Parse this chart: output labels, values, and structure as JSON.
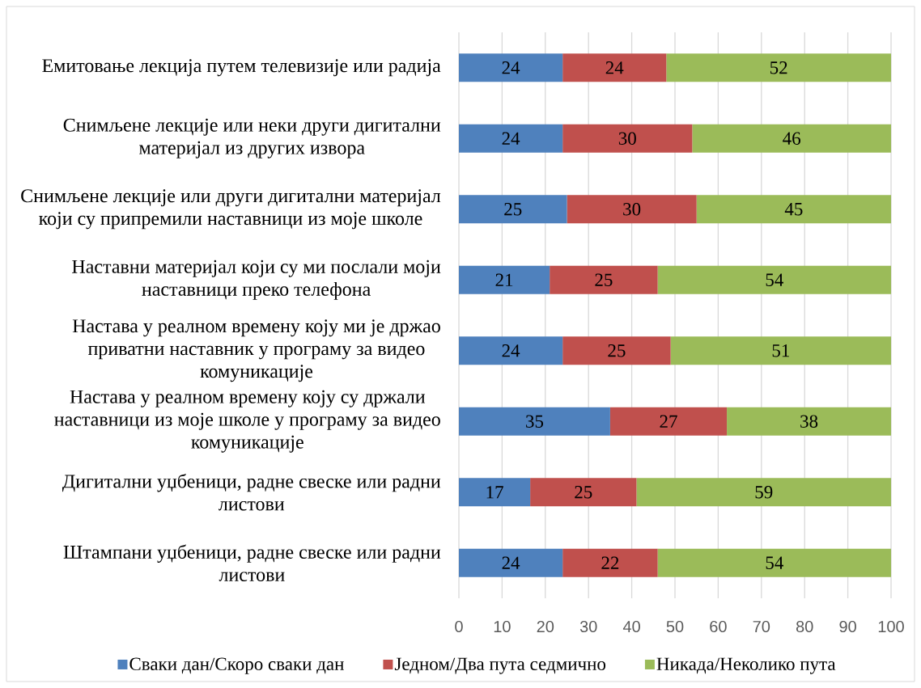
{
  "chart_data": {
    "type": "bar",
    "orientation": "horizontal",
    "stacked": true,
    "categories": [
      "Емитовање лекција путем телевизије или радија",
      "Снимљене лекције или неки други дигитални материјал из других извора",
      "Снимљене лекције или други дигитални материјал који су припремили наставници из моје школе",
      "Наставни материјал који су ми послали моји наставници преко телефона",
      "Настава у реалном времену коју ми је држао приватни наставник у програму за видео комуникације",
      "Настава у реалном времену коју су држали наставници из моје школе у програму за видео комуникације",
      "Дигитални уџбеници, радне свеске или радни листови",
      "Штампани уџбеници, радне свеске или радни листови"
    ],
    "series": [
      {
        "name": "Сваки дан/Скоро сваки дан",
        "color": "#4f81bd",
        "values": [
          24,
          24,
          25,
          21,
          24,
          35,
          16.5,
          24
        ],
        "value_labels": [
          "24",
          "24",
          "25",
          "21",
          "24",
          "35",
          "17",
          "24"
        ]
      },
      {
        "name": "Једном/Два пута седмично",
        "color": "#c0504d",
        "values": [
          24,
          30,
          30,
          25,
          25,
          27,
          24.6,
          22
        ],
        "value_labels": [
          "24",
          "30",
          "30",
          "25",
          "25",
          "27",
          "25",
          "22"
        ]
      },
      {
        "name": "Никада/Неколико пута",
        "color": "#9bbb59",
        "values": [
          52,
          46,
          45,
          54,
          51,
          38,
          58.9,
          54
        ],
        "value_labels": [
          "52",
          "46",
          "45",
          "54",
          "51",
          "38",
          "59",
          "54"
        ]
      }
    ],
    "xlim": [
      0,
      100
    ],
    "xticks": [
      0,
      10,
      20,
      30,
      40,
      50,
      60,
      70,
      80,
      90,
      100
    ],
    "grid": "x",
    "legend": "bottom"
  }
}
